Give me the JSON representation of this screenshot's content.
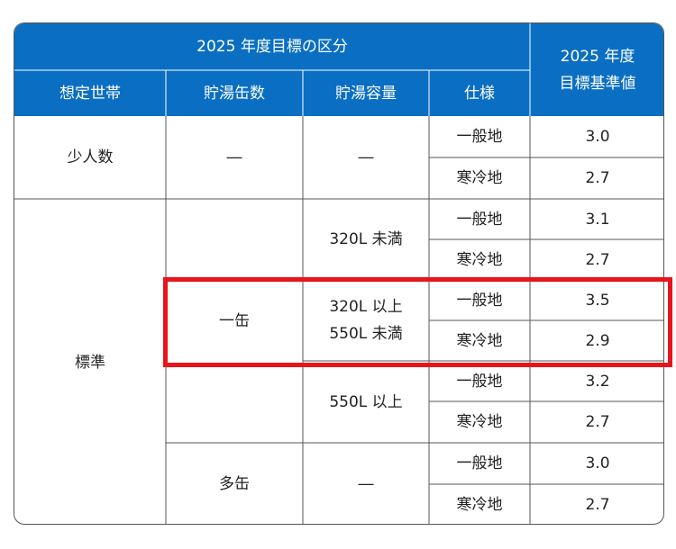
{
  "colors": {
    "header_bg": "#0a6fc2",
    "header_text": "#ffffff",
    "grid": "#555555",
    "highlight": "#e8141b"
  },
  "header": {
    "group_title": "2025 年度目標の区分",
    "target_title_line1": "2025 年度",
    "target_title_line2": "目標基準値",
    "col_household": "想定世帯",
    "col_tanks": "貯湯缶数",
    "col_capacity": "貯湯容量",
    "col_spec": "仕様"
  },
  "rows": {
    "small": {
      "household": "少人数",
      "tanks": "―",
      "capacity": "―",
      "spec": [
        "一般地",
        "寒冷地"
      ],
      "values": [
        "3.0",
        "2.7"
      ]
    },
    "standard_household": "標準",
    "single_tank": "一缶",
    "cap_under320": "320L 未満",
    "cap_320_550_line1": "320L 以上",
    "cap_320_550_line2": "550L 未満",
    "cap_over550": "550L 以上",
    "multi_tank": "多缶",
    "multi_capacity": "―",
    "spec_general": "一般地",
    "spec_cold": "寒冷地",
    "values": {
      "under320": [
        "3.1",
        "2.7"
      ],
      "mid": [
        "3.5",
        "2.9"
      ],
      "over550": [
        "3.2",
        "2.7"
      ],
      "multi": [
        "3.0",
        "2.7"
      ]
    }
  }
}
